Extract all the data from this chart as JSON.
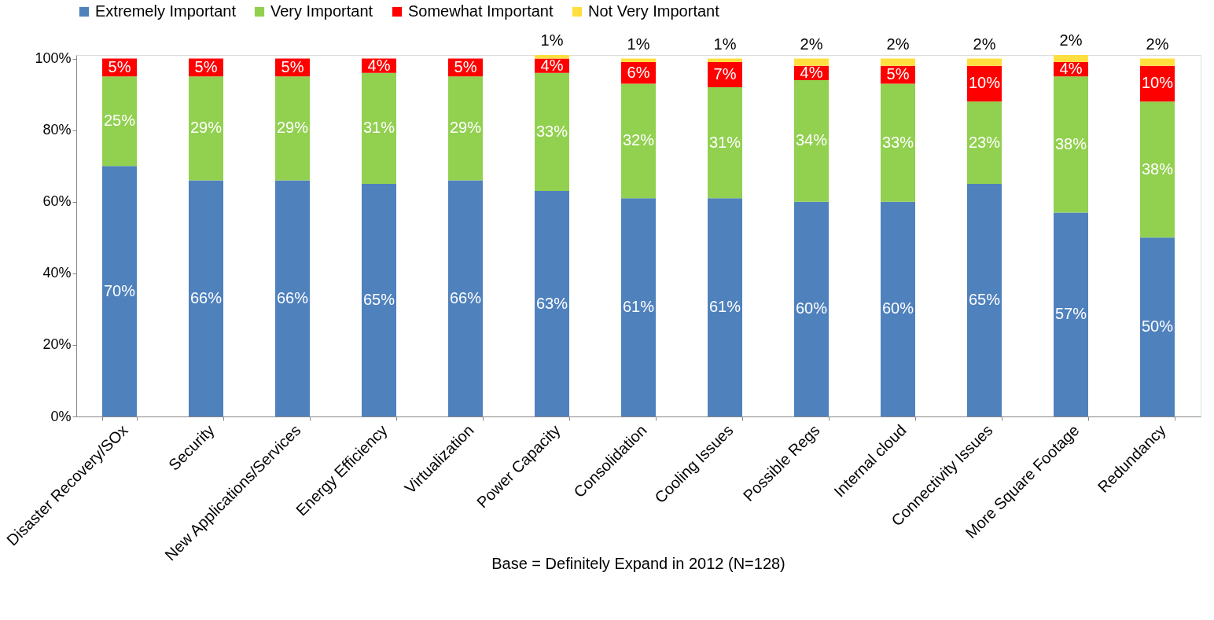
{
  "chart_data": {
    "type": "bar",
    "stacked": true,
    "categories": [
      "Disaster Recovery/SOx",
      "Security",
      "New Applications/Services",
      "Energy Efficiency",
      "Virtualization",
      "Power Capacity",
      "Consolidation",
      "Cooling Issues",
      "Possible Regs",
      "Internal cloud",
      "Connectivity Issues",
      "More Square Footage",
      "Redundancy"
    ],
    "series": [
      {
        "name": "Extremely Important",
        "color": "#4f81bd",
        "values": [
          70,
          66,
          66,
          65,
          66,
          63,
          61,
          61,
          60,
          60,
          65,
          57,
          50
        ],
        "value_labels": [
          "70%",
          "66%",
          "66%",
          "65%",
          "66%",
          "63%",
          "61%",
          "61%",
          "60%",
          "60%",
          "65%",
          "57%",
          "50%"
        ]
      },
      {
        "name": "Very Important",
        "color": "#92d050",
        "values": [
          25,
          29,
          29,
          31,
          29,
          33,
          32,
          31,
          34,
          33,
          23,
          38,
          38
        ],
        "value_labels": [
          "25%",
          "29%",
          "29%",
          "31%",
          "29%",
          "33%",
          "32%",
          "31%",
          "34%",
          "33%",
          "23%",
          "38%",
          "38%"
        ]
      },
      {
        "name": "Somewhat Important",
        "color": "#ff0000",
        "values": [
          5,
          5,
          5,
          4,
          5,
          4,
          6,
          7,
          4,
          5,
          10,
          4,
          10
        ],
        "value_labels": [
          "5%",
          "5%",
          "5%",
          "4%",
          "5%",
          "4%",
          "6%",
          "7%",
          "4%",
          "5%",
          "10%",
          "4%",
          "10%"
        ]
      },
      {
        "name": "Not Very Important",
        "color": "#ffdf3f",
        "values": [
          null,
          null,
          null,
          null,
          null,
          1,
          1,
          1,
          2,
          2,
          2,
          2,
          2
        ],
        "value_labels": [
          null,
          null,
          null,
          null,
          null,
          "1%",
          "1%",
          "1%",
          "2%",
          "2%",
          "2%",
          "2%",
          "2%"
        ]
      }
    ],
    "ylim": [
      0,
      101
    ],
    "yticks": [
      {
        "value": 0,
        "label": "0%"
      },
      {
        "value": 20,
        "label": "20%"
      },
      {
        "value": 40,
        "label": "40%"
      },
      {
        "value": 60,
        "label": "60%"
      },
      {
        "value": 80,
        "label": "80%"
      },
      {
        "value": 100,
        "label": "100%"
      }
    ],
    "grid": false,
    "legend": "top",
    "annotations": [
      "Base = Definitely Expand in 2012 (N=128)"
    ]
  }
}
